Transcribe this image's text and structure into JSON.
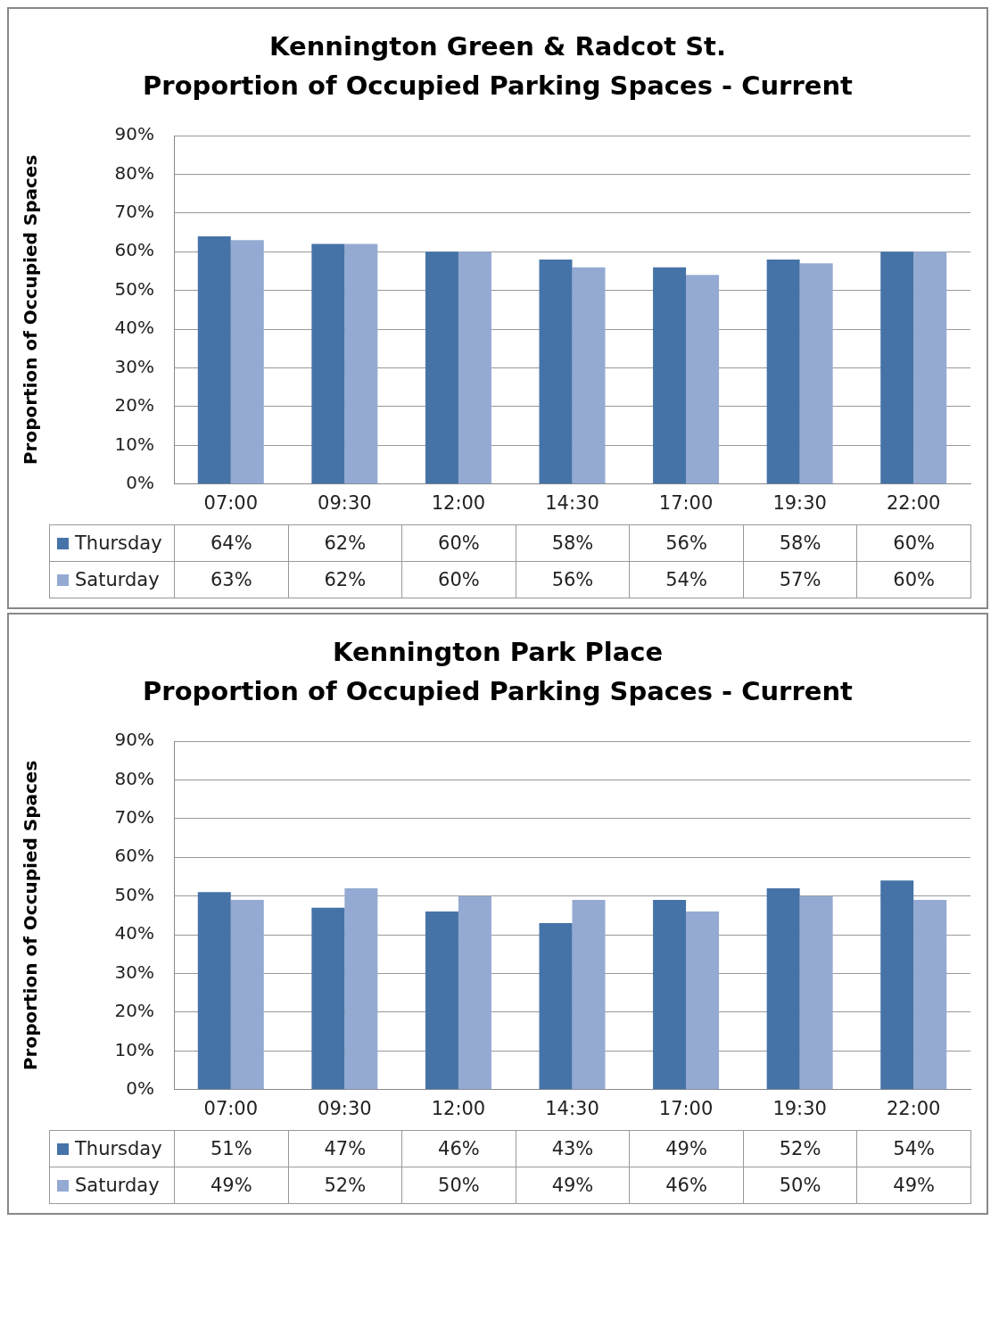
{
  "chart_data": [
    {
      "type": "bar",
      "title": "Kennington Green & Radcot St.",
      "subtitle": "Proportion of Occupied Parking Spaces - Current",
      "ylabel": "Proportion of Occupied Spaces",
      "categories": [
        "07:00",
        "09:30",
        "12:00",
        "14:30",
        "17:00",
        "19:30",
        "22:00"
      ],
      "series": [
        {
          "name": "Thursday",
          "color": "#4573a7",
          "values": [
            64,
            62,
            60,
            58,
            56,
            58,
            60
          ],
          "value_labels": [
            "64%",
            "62%",
            "60%",
            "58%",
            "56%",
            "58%",
            "60%"
          ]
        },
        {
          "name": "Saturday",
          "color": "#94aad2",
          "values": [
            63,
            62,
            60,
            56,
            54,
            57,
            60
          ],
          "value_labels": [
            "63%",
            "62%",
            "60%",
            "56%",
            "54%",
            "57%",
            "60%"
          ]
        }
      ],
      "ylim": [
        0,
        90
      ],
      "yticks": [
        {
          "value": 0,
          "label": "0%"
        },
        {
          "value": 10,
          "label": "10%"
        },
        {
          "value": 20,
          "label": "20%"
        },
        {
          "value": 30,
          "label": "30%"
        },
        {
          "value": 40,
          "label": "40%"
        },
        {
          "value": 50,
          "label": "50%"
        },
        {
          "value": 60,
          "label": "60%"
        },
        {
          "value": 70,
          "label": "70%"
        },
        {
          "value": 80,
          "label": "80%"
        },
        {
          "value": 90,
          "label": "90%"
        }
      ],
      "grid": "y",
      "legend": "bottom left"
    },
    {
      "type": "bar",
      "title": "Kennington Park Place",
      "subtitle": "Proportion of Occupied Parking Spaces - Current",
      "ylabel": "Proportion of Occupied Spaces",
      "categories": [
        "07:00",
        "09:30",
        "12:00",
        "14:30",
        "17:00",
        "19:30",
        "22:00"
      ],
      "series": [
        {
          "name": "Thursday",
          "color": "#4573a7",
          "values": [
            51,
            47,
            46,
            43,
            49,
            52,
            54
          ],
          "value_labels": [
            "51%",
            "47%",
            "46%",
            "43%",
            "49%",
            "52%",
            "54%"
          ]
        },
        {
          "name": "Saturday",
          "color": "#94aad2",
          "values": [
            49,
            52,
            50,
            49,
            46,
            50,
            49
          ],
          "value_labels": [
            "49%",
            "52%",
            "50%",
            "49%",
            "46%",
            "50%",
            "49%"
          ]
        }
      ],
      "ylim": [
        0,
        90
      ],
      "yticks": [
        {
          "value": 0,
          "label": "0%"
        },
        {
          "value": 10,
          "label": "10%"
        },
        {
          "value": 20,
          "label": "20%"
        },
        {
          "value": 30,
          "label": "30%"
        },
        {
          "value": 40,
          "label": "40%"
        },
        {
          "value": 50,
          "label": "50%"
        },
        {
          "value": 60,
          "label": "60%"
        },
        {
          "value": 70,
          "label": "70%"
        },
        {
          "value": 80,
          "label": "80%"
        },
        {
          "value": 90,
          "label": "90%"
        }
      ],
      "grid": "y",
      "legend": "bottom left"
    }
  ]
}
